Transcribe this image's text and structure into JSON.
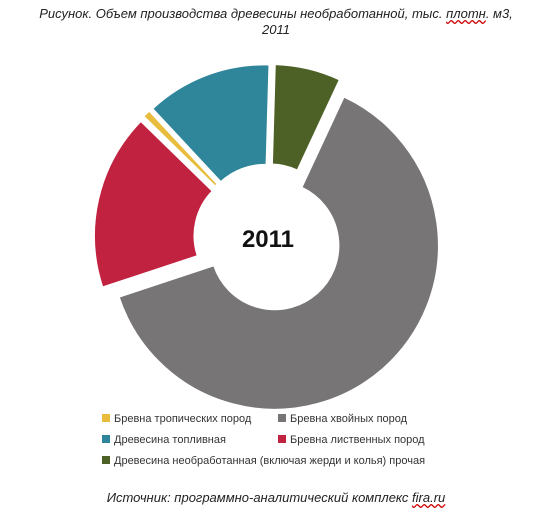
{
  "title_part1": "Рисунок. Объем производства древесины необработанной, тыс. ",
  "title_misspelled": "плотн",
  "title_part2": ". м3,",
  "title_line2": "2011",
  "source_prefix": "Источник: программно-аналитический комплекс ",
  "source_link": "fira.ru",
  "chart_data": {
    "type": "pie",
    "center_label": "2011",
    "series": [
      {
        "name": "Бревна хвойных пород",
        "value": 67,
        "color": "#777575"
      },
      {
        "name": "Бревна лиственных пород",
        "value": 18.5,
        "color": "#c1223f"
      },
      {
        "name": "Бревна тропических пород",
        "value": 0.8,
        "color": "#e8bd3e"
      },
      {
        "name": "Древесина топливная",
        "value": 13.2,
        "color": "#2f8599"
      },
      {
        "name": "Древесина необработанная  (включая жерди и колья) прочая",
        "value": 6.9,
        "color": "#4d6127"
      }
    ],
    "legend": [
      {
        "name": "Бревна тропических пород",
        "color": "#e8bd3e"
      },
      {
        "name": "Бревна хвойных пород",
        "color": "#777575"
      },
      {
        "name": "Древесина топливная",
        "color": "#2f8599"
      },
      {
        "name": "Бревна лиственных пород",
        "color": "#c1223f"
      },
      {
        "name": "Древесина необработанная  (включая жерди и колья) прочая",
        "color": "#4d6127"
      }
    ]
  }
}
